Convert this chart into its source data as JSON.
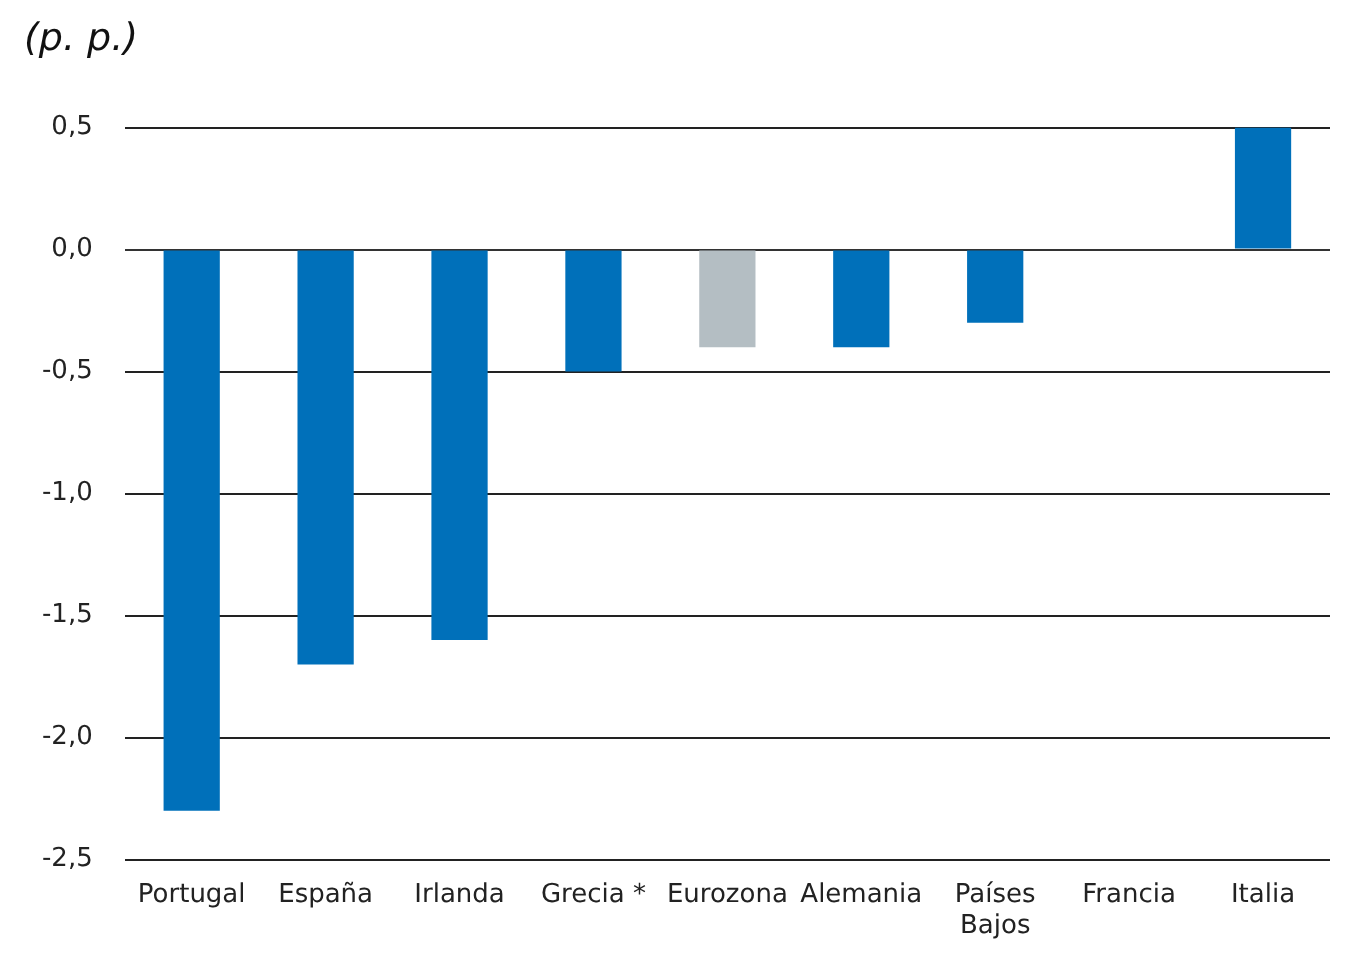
{
  "chart_data": {
    "type": "bar",
    "ylabel": "(p. p.)",
    "categories": [
      "Portugal",
      "España",
      "Irlanda",
      "Grecia *",
      "Eurozona",
      "Alemania",
      "Países Bajos",
      "Francia",
      "Italia"
    ],
    "values": [
      -2.3,
      -1.7,
      -1.6,
      -0.5,
      -0.4,
      -0.4,
      -0.3,
      0,
      0.5
    ],
    "colors": [
      "#0070ba",
      "#0070ba",
      "#0070ba",
      "#0070ba",
      "#b4bec3",
      "#0070ba",
      "#0070ba",
      "#0070ba",
      "#0070ba"
    ],
    "ylim": [
      -2.5,
      0.5
    ],
    "yticks": [
      {
        "value": -2.5,
        "label": "-2,5"
      },
      {
        "value": -2,
        "label": "-2,0"
      },
      {
        "value": -1.5,
        "label": "-1,5"
      },
      {
        "value": -1,
        "label": "-1,0"
      },
      {
        "value": -0.5,
        "label": "-0,5"
      },
      {
        "value": 0,
        "label": "0,0"
      },
      {
        "value": 0.5,
        "label": "0,5"
      }
    ],
    "grid": "y",
    "legend": false
  }
}
